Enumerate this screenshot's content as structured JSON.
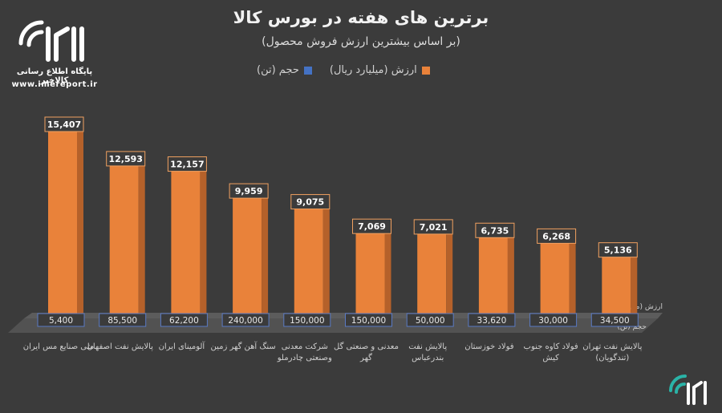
{
  "title": "برترین های هفته در بورس کالا",
  "subtitle": "(بر اساس بیشترین ارزش فروش محصول)",
  "logo": {
    "brand": "کالا خبر",
    "tagline": "پایگاه اطلاع رسانی کالاخبر",
    "url": "www.imereport.ir"
  },
  "watermark": {
    "brand": "کالا خبر"
  },
  "colors": {
    "value": "#e9823a",
    "volume": "#4472c4",
    "background": "#3b3b3b",
    "logo_accent": "#2ab3a7"
  },
  "chart_data": {
    "type": "bar",
    "categories": [
      "ملی صنایع مس ایران",
      "پالایش نفت اصفهان",
      "آلومینای ایران",
      "سنگ آهن گهر زمین",
      "شرکت معدنی وصنعتی چادرملو",
      "معدنی و صنعتی گل گهر",
      "پالایش نفت بندرعباس",
      "فولاد خوزستان",
      "فولاد کاوه جنوب کیش",
      "پالایش نفت تهران (تندگویان)"
    ],
    "series": [
      {
        "name": "ارزش (میلیارد ریال)",
        "axis_label": "ارزش (میلیارد ریال)",
        "values": [
          15407,
          12593,
          12157,
          9959,
          9075,
          7069,
          7021,
          6735,
          6268,
          5136
        ],
        "labels": [
          "15,407",
          "12,593",
          "12,157",
          "9,959",
          "9,075",
          "7,069",
          "7,021",
          "6,735",
          "6,268",
          "5,136"
        ]
      },
      {
        "name": "حجم (تن)",
        "axis_label": "حجم (تن)",
        "values": [
          5400,
          85500,
          62200,
          240000,
          150000,
          150000,
          50000,
          33620,
          30000,
          34500
        ],
        "labels": [
          "5,400",
          "85,500",
          "62,200",
          "240,000",
          "150,000",
          "150,000",
          "50,000",
          "33,620",
          "30,000",
          "34,500"
        ]
      }
    ],
    "legend_position": "top",
    "grid": false,
    "ylim": [
      0,
      16000
    ]
  }
}
